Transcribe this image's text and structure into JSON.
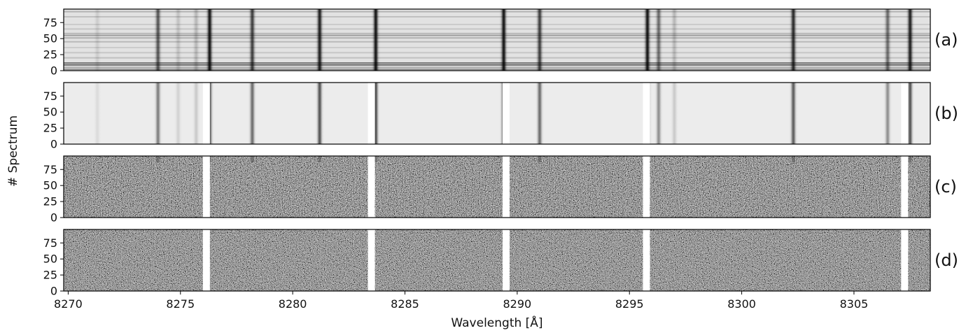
{
  "chart_data": {
    "type": "heatmap",
    "xlabel": "Wavelength [Å]",
    "ylabel": "# Spectrum",
    "xlim": [
      8269.8,
      8308.4
    ],
    "ylim": [
      0,
      96
    ],
    "xticks": [
      8270,
      8275,
      8280,
      8285,
      8290,
      8295,
      8300,
      8305
    ],
    "yticks": [
      0,
      25,
      50,
      75
    ],
    "colormap": "gray",
    "masked_regions_angstrom": [
      [
        8276.0,
        8276.2
      ],
      [
        8283.35,
        8283.55
      ],
      [
        8289.35,
        8289.55
      ],
      [
        8295.6,
        8295.8
      ],
      [
        8307.1,
        8307.3
      ]
    ],
    "absorption_lines": [
      {
        "wavelength": 8271.3,
        "depth": 0.1
      },
      {
        "wavelength": 8274.0,
        "depth": 0.65
      },
      {
        "wavelength": 8274.9,
        "depth": 0.15
      },
      {
        "wavelength": 8275.7,
        "depth": 0.2
      },
      {
        "wavelength": 8276.3,
        "depth": 0.95
      },
      {
        "wavelength": 8278.2,
        "depth": 0.75
      },
      {
        "wavelength": 8281.2,
        "depth": 0.9
      },
      {
        "wavelength": 8283.7,
        "depth": 0.95
      },
      {
        "wavelength": 8289.4,
        "depth": 0.95
      },
      {
        "wavelength": 8291.0,
        "depth": 0.75
      },
      {
        "wavelength": 8295.8,
        "depth": 0.95
      },
      {
        "wavelength": 8296.3,
        "depth": 0.55
      },
      {
        "wavelength": 8297.0,
        "depth": 0.2
      },
      {
        "wavelength": 8302.3,
        "depth": 0.85
      },
      {
        "wavelength": 8306.5,
        "depth": 0.55
      },
      {
        "wavelength": 8307.5,
        "depth": 0.9
      }
    ],
    "panels": [
      {
        "label": "(a)",
        "content": "observed spectra"
      },
      {
        "label": "(b)",
        "content": "normalized spectra"
      },
      {
        "label": "(c)",
        "content": "residuals"
      },
      {
        "label": "(d)",
        "content": "residuals"
      }
    ]
  }
}
